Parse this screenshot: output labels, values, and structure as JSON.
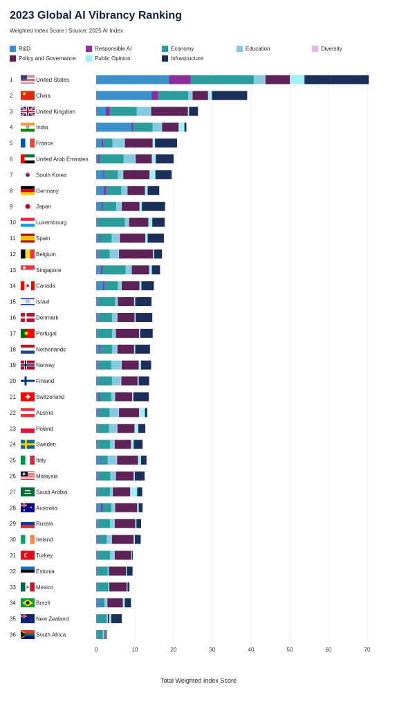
{
  "title": "2023 Global AI Vibrancy Ranking",
  "subtitle": "Weighted Index Score | Source: 2025 AI Index",
  "colors": {
    "R&D": "#3b8fcb",
    "Responsible AI": "#8b2e9b",
    "Economy": "#2a9d9a",
    "Education": "#87c9e3",
    "Diversity": "#e5b3f0",
    "Policy and Governance": "#5e2356",
    "Public Opinion": "#9ff0f0",
    "Infrastructure": "#1c2f5a"
  },
  "chart_data": {
    "type": "bar",
    "orientation": "horizontal",
    "stacked": true,
    "title": "2023 Global AI Vibrancy Ranking",
    "subtitle": "Weighted Index Score | Source: 2025 AI Index",
    "xlabel": "Total Weighted Index Score",
    "xlim": [
      0,
      70
    ],
    "xticks": [
      0,
      10,
      20,
      30,
      40,
      50,
      60,
      70
    ],
    "legend_position": "top",
    "legend_order": [
      "R&D",
      "Responsible AI",
      "Economy",
      "Education",
      "Diversity",
      "Policy and Governance",
      "Public Opinion",
      "Infrastructure"
    ],
    "stack_order": [
      "R&D",
      "Responsible AI",
      "Economy",
      "Education",
      "Diversity",
      "Policy and Governance",
      "Public Opinion",
      "Infrastructure"
    ],
    "ranks": [
      1,
      2,
      3,
      4,
      5,
      6,
      7,
      8,
      9,
      10,
      11,
      12,
      13,
      14,
      15,
      16,
      17,
      18,
      19,
      20,
      21,
      22,
      23,
      24,
      25,
      26,
      27,
      28,
      29,
      30,
      31,
      32,
      33,
      34,
      35,
      36
    ],
    "categories": [
      "United States",
      "China",
      "United Kingdom",
      "India",
      "France",
      "United Arab Emirates",
      "South Korea",
      "Germany",
      "Japan",
      "Luxembourg",
      "Spain",
      "Belgium",
      "Singapore",
      "Canada",
      "Israel",
      "Denmark",
      "Portugal",
      "Netherlands",
      "Norway",
      "Finland",
      "Switzerland",
      "Austria",
      "Poland",
      "Sweden",
      "Italy",
      "Malaysia",
      "Saudi Arabia",
      "Australia",
      "Russia",
      "Ireland",
      "Turkey",
      "Estonia",
      "Mexico",
      "Brazil",
      "New Zealand",
      "South Africa"
    ],
    "series": [
      {
        "name": "R&D",
        "values": [
          18.8,
          14.3,
          2.5,
          9.2,
          1.5,
          0.5,
          1.8,
          2.0,
          1.4,
          0.3,
          0.8,
          0.6,
          1.2,
          1.8,
          0.5,
          0.6,
          0.4,
          0.8,
          0.6,
          0.5,
          0.6,
          0.6,
          0.5,
          0.5,
          1.0,
          0.6,
          0.5,
          1.2,
          0.5,
          0.6,
          0.5,
          0.3,
          0.4,
          1.0,
          0.4,
          0.4
        ]
      },
      {
        "name": "Responsible AI",
        "values": [
          5.6,
          1.7,
          1.0,
          0.4,
          0.3,
          0.3,
          0.3,
          0.5,
          0.3,
          0.1,
          0.2,
          0.1,
          0.4,
          0.4,
          0.1,
          0.1,
          0.1,
          0.3,
          0.1,
          0.1,
          0.3,
          0.1,
          0.1,
          0.1,
          0.2,
          0.1,
          0.1,
          0.4,
          0.1,
          0.1,
          0.1,
          0.1,
          0.1,
          0.2,
          0.1,
          0.1
        ]
      },
      {
        "name": "Economy",
        "values": [
          16.3,
          7.8,
          7.0,
          5.0,
          2.4,
          6.3,
          3.5,
          4.0,
          3.5,
          7.0,
          3.0,
          2.8,
          6.0,
          3.4,
          4.3,
          3.4,
          3.6,
          3.0,
          3.2,
          3.5,
          3.0,
          2.8,
          2.7,
          3.0,
          1.8,
          3.0,
          3.0,
          2.3,
          3.0,
          2.0,
          3.0,
          2.6,
          2.6,
          1.0,
          2.2,
          1.2
        ]
      },
      {
        "name": "Education",
        "values": [
          2.8,
          1.0,
          3.5,
          2.2,
          3.0,
          3.0,
          1.2,
          1.5,
          1.2,
          1.0,
          1.8,
          2.2,
          1.5,
          0.8,
          0.6,
          1.2,
          0.8,
          1.2,
          2.5,
          2.2,
          0.8,
          2.2,
          2.0,
          1.0,
          2.2,
          1.2,
          0.6,
          0.8,
          1.0,
          1.2,
          1.0,
          0.2,
          0.2,
          0.5,
          0.2,
          0.3
        ]
      },
      {
        "name": "Diversity",
        "values": [
          0.2,
          0.1,
          0.2,
          0.2,
          0.2,
          0.1,
          0.2,
          0.1,
          0.2,
          0.1,
          0.3,
          0.2,
          0.1,
          0.2,
          0.1,
          0.2,
          0.2,
          0.2,
          0.2,
          0.2,
          0.2,
          0.2,
          0.2,
          0.2,
          0.2,
          0.2,
          0.1,
          0.2,
          0.2,
          0.2,
          0.2,
          0.1,
          0.1,
          0.2,
          0.1,
          0.1
        ]
      },
      {
        "name": "Policy and Governance",
        "values": [
          6.3,
          4.0,
          9.5,
          4.3,
          7.2,
          4.2,
          6.8,
          4.5,
          4.6,
          5.0,
          6.6,
          8.8,
          4.5,
          4.6,
          4.2,
          4.4,
          6.0,
          4.3,
          4.4,
          4.2,
          4.4,
          5.2,
          4.4,
          4.2,
          5.4,
          4.6,
          4.5,
          5.7,
          5.3,
          5.6,
          4.3,
          4.4,
          4.5,
          4.0,
          0.4,
          0.2
        ]
      },
      {
        "name": "Public Opinion",
        "values": [
          3.8,
          1.0,
          0.3,
          1.5,
          0.6,
          1.0,
          1.5,
          0.7,
          0.6,
          1.0,
          0.6,
          0.3,
          0.7,
          0.5,
          0.3,
          0.3,
          0.3,
          0.3,
          0.6,
          0.3,
          0.3,
          1.5,
          1.0,
          0.7,
          0.8,
          0.3,
          1.8,
          0.4,
          0.3,
          0.3,
          0.2,
          0.2,
          0.2,
          0.5,
          0.5,
          0.1
        ]
      },
      {
        "name": "Infrastructure",
        "values": [
          16.6,
          9.1,
          2.3,
          0.5,
          5.7,
          4.6,
          4.2,
          3.0,
          6.0,
          3.2,
          4.2,
          2.0,
          2.1,
          3.2,
          4.2,
          4.3,
          3.2,
          3.8,
          2.6,
          2.7,
          4.0,
          0.6,
          1.8,
          2.3,
          1.4,
          2.5,
          1.3,
          1.0,
          1.2,
          1.5,
          0.2,
          1.5,
          0.5,
          1.6,
          2.7,
          0.3
        ]
      }
    ]
  }
}
